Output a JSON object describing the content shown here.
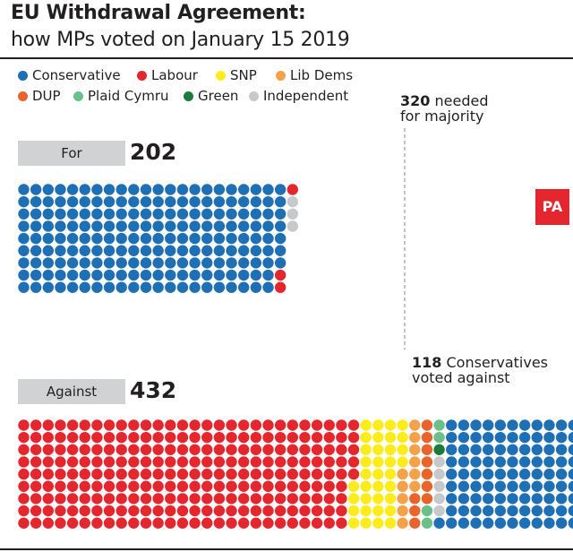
{
  "header": {
    "title": "EU Withdrawal Agreement:",
    "subtitle": "how MPs voted on January 15 2019"
  },
  "legend": [
    {
      "label": "Conservative",
      "color": "#1f6fb4"
    },
    {
      "label": "Labour",
      "color": "#e4272e"
    },
    {
      "label": "SNP",
      "color": "#fdec1c"
    },
    {
      "label": "Lib Dems",
      "color": "#f4a24a"
    },
    {
      "label": "DUP",
      "color": "#e8642c"
    },
    {
      "label": "Plaid Cymru",
      "color": "#6bbf8a"
    },
    {
      "label": "Green",
      "color": "#1e7a3c"
    },
    {
      "label": "Independent",
      "color": "#c7c8cc"
    }
  ],
  "majority_note": {
    "bold": "320",
    "text": " needed",
    "line2": "for majority"
  },
  "against_note": {
    "bold": "118",
    "text": " Conservatives",
    "line2": "voted against"
  },
  "badge": "PA",
  "chart_data": {
    "type": "waffle",
    "majority_threshold": 320,
    "groups": [
      {
        "label": "For",
        "total": "202",
        "parties": [
          {
            "party": "Conservative",
            "seats": 196
          },
          {
            "party": "Labour",
            "seats": 3
          },
          {
            "party": "Independent",
            "seats": 3
          }
        ]
      },
      {
        "label": "Against",
        "total": "432",
        "parties": [
          {
            "party": "Labour",
            "seats": 248
          },
          {
            "party": "SNP",
            "seats": 35
          },
          {
            "party": "Lib Dems",
            "seats": 11
          },
          {
            "party": "DUP",
            "seats": 10
          },
          {
            "party": "Plaid Cymru",
            "seats": 4
          },
          {
            "party": "Green",
            "seats": 1
          },
          {
            "party": "Independent",
            "seats": 5
          },
          {
            "party": "Conservative",
            "seats": 118
          }
        ]
      }
    ]
  }
}
